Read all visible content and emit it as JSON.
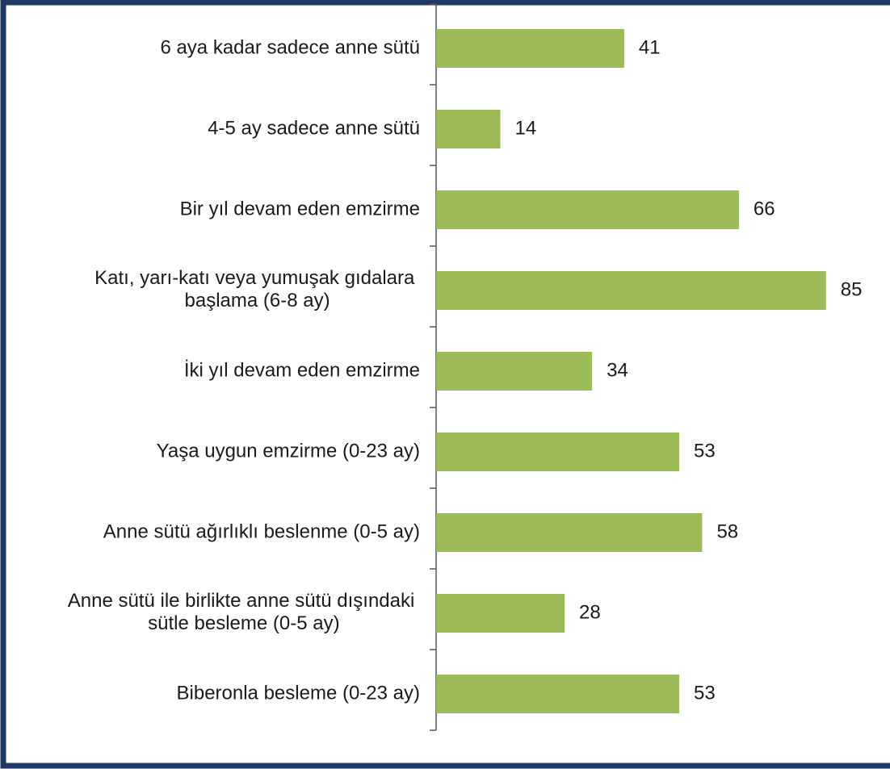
{
  "chart_data": {
    "type": "bar",
    "orientation": "horizontal",
    "categories": [
      "6 aya kadar sadece anne sütü",
      "4-5 ay sadece anne sütü",
      "Bir yıl devam eden emzirme",
      "Katı, yarı-katı veya yumuşak gıdalara\nbaşlama (6-8 ay)",
      "İki yıl devam eden emzirme",
      "Yaşa uygun emzirme (0-23 ay)",
      "Anne sütü ağırlıklı beslenme (0-5 ay)",
      "Anne sütü ile birlikte anne sütü dışındaki\nsütle besleme (0-5 ay)",
      "Biberonla besleme (0-23 ay)"
    ],
    "values": [
      41,
      14,
      66,
      85,
      34,
      53,
      58,
      28,
      53
    ],
    "color": "#9bbb59"
  }
}
